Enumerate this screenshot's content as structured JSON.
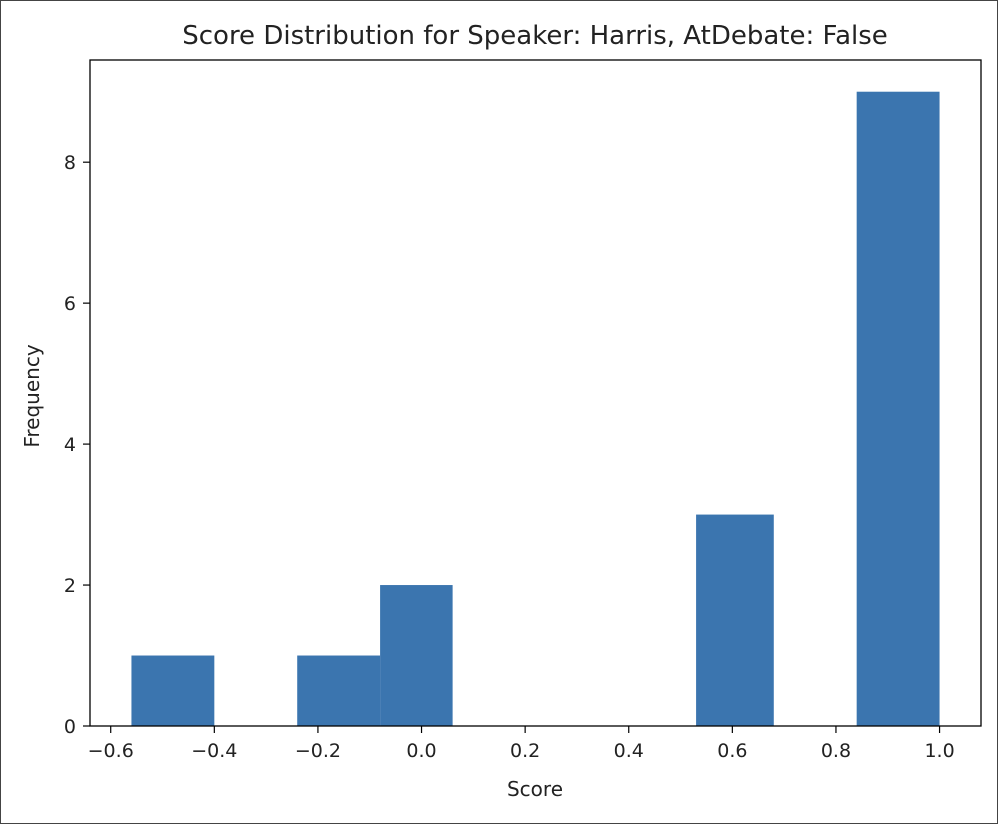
{
  "chart_data": {
    "type": "bar",
    "title": "Score Distribution for Speaker: Harris, AtDebate: False",
    "xlabel": "Score",
    "ylabel": "Frequency",
    "xlim": [
      -0.64,
      1.08
    ],
    "ylim": [
      0,
      9.45
    ],
    "x_ticks": [
      -0.6,
      -0.4,
      -0.2,
      0.0,
      0.2,
      0.4,
      0.6,
      0.8,
      1.0
    ],
    "x_tick_labels": [
      "−0.6",
      "−0.4",
      "−0.2",
      "0.0",
      "0.2",
      "0.4",
      "0.6",
      "0.8",
      "1.0"
    ],
    "y_ticks": [
      0,
      2,
      4,
      6,
      8
    ],
    "y_tick_labels": [
      "0",
      "2",
      "4",
      "6",
      "8"
    ],
    "grid": false,
    "color": "#3b75af",
    "bins": [
      {
        "x0": -0.56,
        "x1": -0.4,
        "count": 1
      },
      {
        "x0": -0.4,
        "x1": -0.24,
        "count": 0
      },
      {
        "x0": -0.24,
        "x1": -0.08,
        "count": 1
      },
      {
        "x0": -0.08,
        "x1": 0.06,
        "count": 2
      },
      {
        "x0": 0.06,
        "x1": 0.22,
        "count": 0
      },
      {
        "x0": 0.22,
        "x1": 0.38,
        "count": 0
      },
      {
        "x0": 0.38,
        "x1": 0.53,
        "count": 0
      },
      {
        "x0": 0.53,
        "x1": 0.68,
        "count": 3
      },
      {
        "x0": 0.68,
        "x1": 0.84,
        "count": 0
      },
      {
        "x0": 0.84,
        "x1": 1.0,
        "count": 9
      }
    ]
  }
}
